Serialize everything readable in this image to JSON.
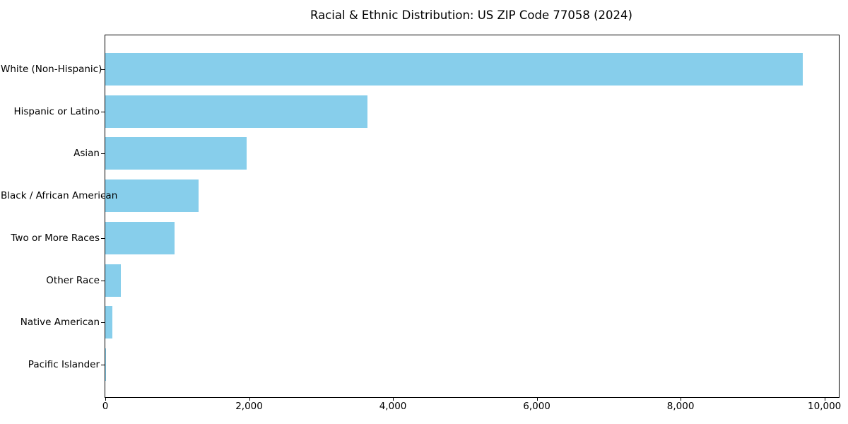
{
  "title": "Racial & Ethnic Distribution: US ZIP Code 77058 (2024)",
  "chart_data": {
    "type": "bar",
    "orientation": "horizontal",
    "title": "Racial & Ethnic Distribution: US ZIP Code 77058 (2024)",
    "categories": [
      "White (Non-Hispanic)",
      "Hispanic or Latino",
      "Asian",
      "Black / African American",
      "Two or More Races",
      "Other Race",
      "Native American",
      "Pacific Islander"
    ],
    "values": [
      9700,
      3650,
      1970,
      1300,
      960,
      220,
      95,
      10
    ],
    "xlabel": "",
    "ylabel": "",
    "xlim": [
      0,
      10200
    ],
    "x_ticks": [
      0,
      2000,
      4000,
      6000,
      8000,
      10000
    ],
    "x_tick_labels": [
      "0",
      "2,000",
      "4,000",
      "6,000",
      "8,000",
      "10,000"
    ],
    "bar_color": "#87CEEB",
    "grid": false,
    "legend": "none",
    "background": "#FFFFFF",
    "axis_color": "#000000",
    "text_color": "#000000"
  }
}
